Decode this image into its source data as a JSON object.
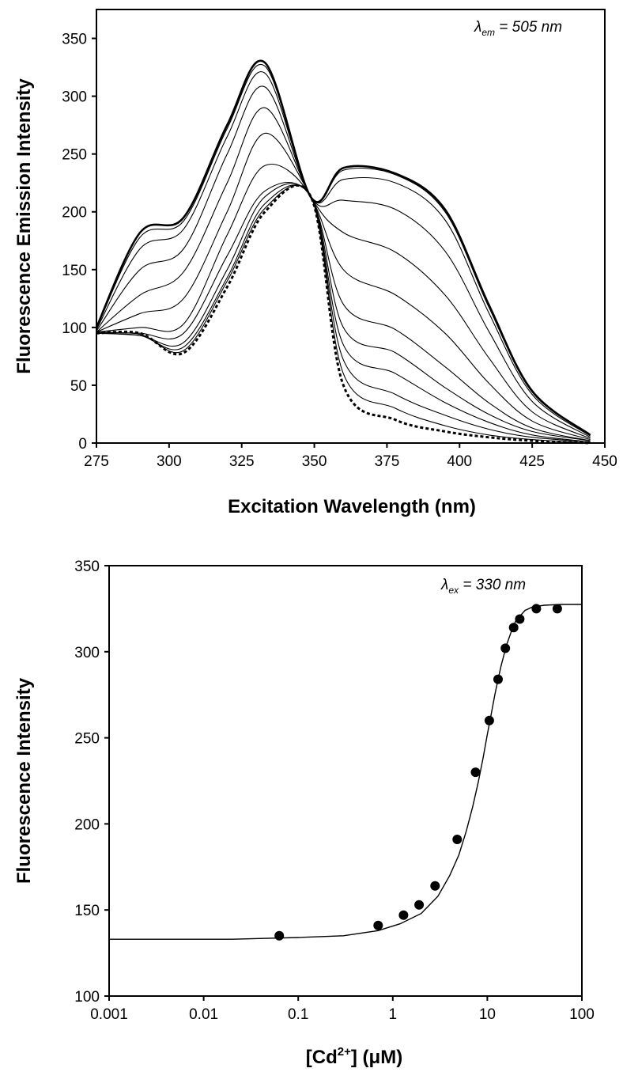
{
  "chart_data": [
    {
      "type": "line",
      "ylabel": "Fluorescence Emission Intensity",
      "xlabel": "Excitation Wavelength (nm)",
      "annotation": {
        "symbol": "λ",
        "subscript": "em",
        "text": " = 505 nm"
      },
      "xlim": [
        275,
        450
      ],
      "ylim": [
        0,
        375
      ],
      "xticks": [
        "275",
        "300",
        "325",
        "350",
        "375",
        "400",
        "425",
        "450"
      ],
      "yticks": [
        "0",
        "50",
        "100",
        "150",
        "200",
        "250",
        "300",
        "350"
      ],
      "grid": false,
      "isosbestic_point": {
        "x": 349,
        "y": 212
      },
      "x": [
        275,
        290,
        305,
        320,
        333,
        349,
        360,
        378,
        395,
        410,
        425,
        445
      ],
      "series": [
        {
          "style": "dashed",
          "values": [
            95,
            95,
            78,
            135,
            200,
            212,
            50,
            20,
            10,
            5,
            2,
            0
          ]
        },
        {
          "style": "solid",
          "values": [
            95,
            94,
            80,
            140,
            203,
            212,
            60,
            30,
            15,
            7,
            3,
            0
          ]
        },
        {
          "style": "solid",
          "values": [
            95,
            93,
            83,
            143,
            207,
            212,
            72,
            42,
            24,
            12,
            5,
            1
          ]
        },
        {
          "style": "solid",
          "values": [
            95,
            93,
            87,
            150,
            213,
            212,
            85,
            60,
            35,
            18,
            7,
            1
          ]
        },
        {
          "style": "solid",
          "values": [
            96,
            95,
            95,
            162,
            218,
            212,
            100,
            78,
            48,
            25,
            10,
            2
          ]
        },
        {
          "style": "solid",
          "values": [
            96,
            100,
            103,
            180,
            240,
            212,
            120,
            98,
            66,
            35,
            13,
            2
          ]
        },
        {
          "style": "solid",
          "values": [
            96,
            112,
            125,
            200,
            268,
            212,
            150,
            128,
            95,
            52,
            19,
            3
          ]
        },
        {
          "style": "solid",
          "values": [
            96,
            128,
            148,
            225,
            290,
            212,
            182,
            165,
            128,
            74,
            27,
            4
          ]
        },
        {
          "style": "solid",
          "values": [
            97,
            150,
            168,
            250,
            308,
            212,
            210,
            202,
            166,
            97,
            36,
            5
          ]
        },
        {
          "style": "solid",
          "values": [
            98,
            168,
            185,
            265,
            320,
            212,
            228,
            225,
            193,
            113,
            42,
            6
          ]
        },
        {
          "style": "solid",
          "values": [
            99,
            178,
            192,
            272,
            326,
            212,
            236,
            232,
            200,
            118,
            44,
            7
          ]
        },
        {
          "style": "solid",
          "values": [
            100,
            182,
            195,
            275,
            329,
            212,
            238,
            233,
            202,
            120,
            45,
            7
          ]
        }
      ]
    },
    {
      "type": "scatter",
      "ylabel": "Fluorescence Intensity",
      "xlabel": "[Cd2+] (μM)",
      "xlabel_parts": {
        "pre": "[Cd",
        "sup": "2+",
        "post": "]  (μM)"
      },
      "annotation": {
        "symbol": "λ",
        "subscript": "ex",
        "text": " = 330 nm"
      },
      "xscale": "log",
      "xlim": [
        0.001,
        100
      ],
      "ylim": [
        100,
        350
      ],
      "xticks": [
        "0.001",
        "0.01",
        "0.1",
        "1",
        "10",
        "100"
      ],
      "xtick_values": [
        0.001,
        0.01,
        0.1,
        1,
        10,
        100
      ],
      "yticks": [
        "100",
        "150",
        "200",
        "250",
        "300",
        "350"
      ],
      "grid": false,
      "points": {
        "x": [
          0.063,
          0.7,
          1.3,
          1.9,
          2.8,
          4.8,
          7.5,
          10.5,
          13.0,
          15.5,
          19.0,
          22.0,
          33.0,
          55.0
        ],
        "y": [
          135,
          141,
          147,
          153,
          164,
          191,
          230,
          260,
          284,
          302,
          314,
          319,
          325,
          325
        ]
      },
      "fit": {
        "x": [
          0.001,
          0.02,
          0.1,
          0.3,
          0.7,
          1.2,
          2,
          3,
          4,
          5,
          6,
          7,
          8,
          9,
          10,
          11,
          12,
          13,
          14,
          16,
          18,
          20,
          25,
          30,
          40,
          60,
          100
        ],
        "y": [
          133,
          133,
          134,
          135,
          138,
          142,
          148,
          158,
          170,
          182,
          196,
          210,
          224,
          238,
          252,
          264,
          275,
          284,
          292,
          304,
          312,
          318,
          324,
          326,
          327,
          327.5,
          327.5
        ]
      }
    }
  ]
}
